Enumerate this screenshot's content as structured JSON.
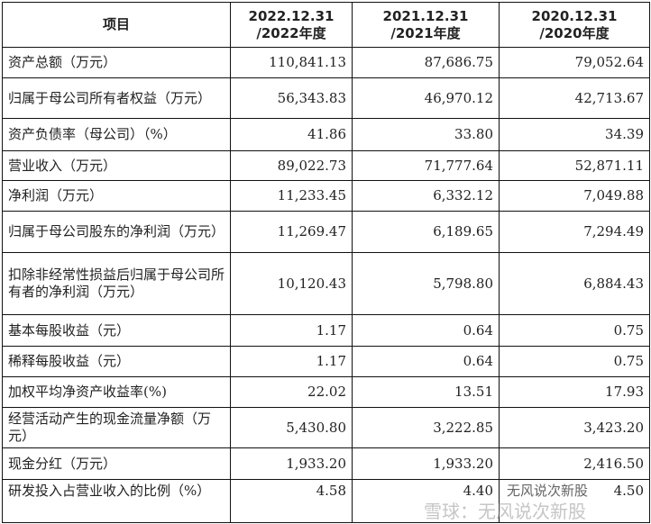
{
  "table": {
    "headers": [
      "项目",
      "2022.12.31\n/2022年度",
      "2021.12.31\n/2021年度",
      "2020.12.31\n/2020年度"
    ],
    "rows": [
      {
        "label": "资产总额（万元）",
        "values": [
          "110,841.13",
          "87,686.75",
          "79,052.64"
        ]
      },
      {
        "label": "归属于母公司所有者权益（万元）",
        "values": [
          "56,343.83",
          "46,970.12",
          "42,713.67"
        ]
      },
      {
        "label": "资产负债率（母公司）（%）",
        "values": [
          "41.86",
          "33.80",
          "34.39"
        ]
      },
      {
        "label": "营业收入（万元）",
        "values": [
          "89,022.73",
          "71,777.64",
          "52,871.11"
        ]
      },
      {
        "label": "净利润（万元）",
        "values": [
          "11,233.45",
          "6,332.12",
          "7,049.88"
        ]
      },
      {
        "label": "归属于母公司股东的净利润（万元）",
        "values": [
          "11,269.47",
          "6,189.65",
          "7,294.49"
        ]
      },
      {
        "label": "扣除非经常性损益后归属于母公司所有者的净利润（万元）",
        "values": [
          "10,120.43",
          "5,798.80",
          "6,884.43"
        ]
      },
      {
        "label": "基本每股收益（元）",
        "values": [
          "1.17",
          "0.64",
          "0.75"
        ]
      },
      {
        "label": "稀释每股收益（元）",
        "values": [
          "1.17",
          "0.64",
          "0.75"
        ]
      },
      {
        "label": "加权平均净资产收益率(%)",
        "values": [
          "22.02",
          "13.51",
          "17.93"
        ]
      },
      {
        "label": "经营活动产生的现金流量净额（万元）",
        "values": [
          "5,430.80",
          "3,222.85",
          "3,423.20"
        ]
      },
      {
        "label": "现金分红（万元）",
        "values": [
          "1,933.20",
          "1,933.20",
          "2,416.50"
        ]
      },
      {
        "label": "研发投入占营业收入的比例（%）",
        "values": [
          "4.58",
          "4.40",
          "4.50"
        ]
      }
    ]
  },
  "watermark": {
    "main": "雪球：无风说次新股",
    "secondary": "无风说次新股"
  }
}
